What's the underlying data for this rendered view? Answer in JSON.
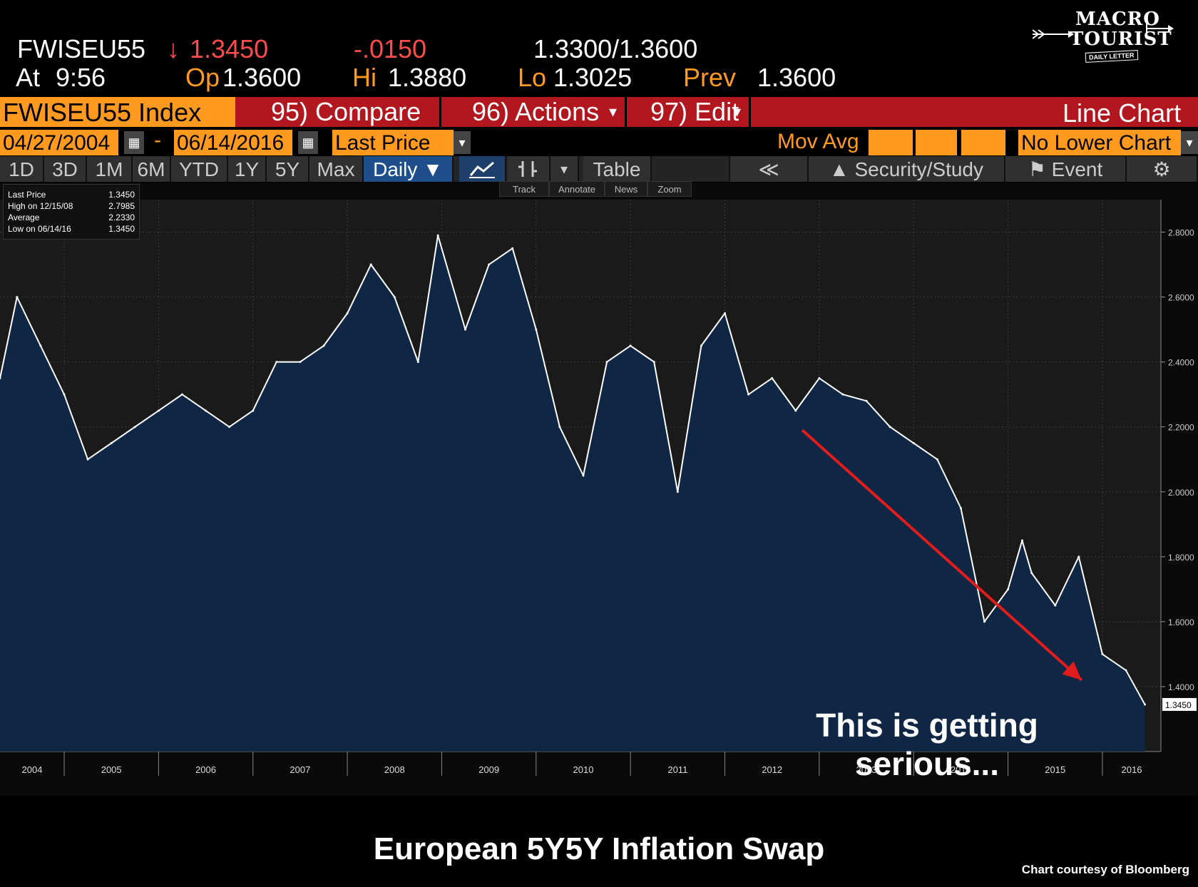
{
  "quote": {
    "ticker": "FWISEU55",
    "arrow": "↓",
    "last": "1.3450",
    "change": "-.0150",
    "bid_ask": "1.3300/1.3600",
    "at_label": "At",
    "at_time": "9:56",
    "op_label": "Op",
    "op_value": "1.3600",
    "hi_label": "Hi",
    "hi_value": "1.3880",
    "lo_label": "Lo",
    "lo_value": "1.3025",
    "prev_label": "Prev",
    "prev_value": "1.3600"
  },
  "logo": {
    "line1": "MACRO",
    "line2": "TOURIST",
    "line3": "DAILY LETTER"
  },
  "toolbar1": {
    "security": "FWISEU55 Index",
    "compare": "95) Compare",
    "actions": "96) Actions",
    "edit": "97) Edit",
    "chart_type": "Line Chart",
    "dropdown_arrow": "▾"
  },
  "toolbar2": {
    "start_date": "04/27/2004",
    "dash": "-",
    "end_date": "06/14/2016",
    "field": "Last Price",
    "mov_avg": "Mov Avg",
    "lower_chart": "No Lower Chart",
    "calendar_glyph": "▦",
    "dropdown_arrow": "▾"
  },
  "toolbar3": {
    "periods": [
      "1D",
      "3D",
      "1M",
      "6M",
      "YTD",
      "1Y",
      "5Y",
      "Max"
    ],
    "frequency": "Daily ▼",
    "table": "Table",
    "back": "≪",
    "security_study": "Security/Study",
    "event": "Event",
    "settings_glyph": "⚙"
  },
  "minitoolbar": {
    "track": "Track",
    "annotate": "Annotate",
    "news": "News",
    "zoom": "Zoom"
  },
  "legend": {
    "last_label": "Last Price",
    "last_value": "1.3450",
    "high_label": "High on 12/15/08",
    "high_value": "2.7985",
    "avg_label": "Average",
    "avg_value": "2.2330",
    "low_label": "Low on 06/14/16",
    "low_value": "1.3450"
  },
  "annotation": {
    "line1": "This is getting",
    "line2": "serious..."
  },
  "footer": {
    "title": "European 5Y5Y Inflation Swap",
    "credit": "Chart courtesy of Bloomberg"
  },
  "colors": {
    "fill": "#0f2744",
    "line": "#ffffff",
    "arrow": "#e01c1c",
    "orange": "#ff9a1f",
    "red_bar": "#b2161e"
  },
  "chart_data": {
    "type": "area",
    "title": "European 5Y5Y Inflation Swap",
    "series": [
      {
        "name": "Last Price",
        "x": [
          2004.32,
          2004.5,
          2004.75,
          2005.0,
          2005.25,
          2005.5,
          2005.75,
          2006.0,
          2006.25,
          2006.5,
          2006.75,
          2007.0,
          2007.25,
          2007.5,
          2007.75,
          2008.0,
          2008.25,
          2008.5,
          2008.75,
          2008.96,
          2009.25,
          2009.5,
          2009.75,
          2010.0,
          2010.25,
          2010.5,
          2010.75,
          2011.0,
          2011.25,
          2011.5,
          2011.75,
          2012.0,
          2012.25,
          2012.5,
          2012.75,
          2013.0,
          2013.25,
          2013.5,
          2013.75,
          2014.0,
          2014.25,
          2014.5,
          2014.75,
          2015.0,
          2015.15,
          2015.25,
          2015.5,
          2015.75,
          2016.0,
          2016.25,
          2016.45
        ],
        "y": [
          2.35,
          2.6,
          2.45,
          2.3,
          2.1,
          2.15,
          2.2,
          2.25,
          2.3,
          2.25,
          2.2,
          2.25,
          2.4,
          2.4,
          2.45,
          2.55,
          2.7,
          2.6,
          2.4,
          2.79,
          2.5,
          2.7,
          2.75,
          2.5,
          2.2,
          2.05,
          2.4,
          2.45,
          2.4,
          2.0,
          2.45,
          2.55,
          2.3,
          2.35,
          2.25,
          2.35,
          2.3,
          2.28,
          2.2,
          2.15,
          2.1,
          1.95,
          1.6,
          1.7,
          1.85,
          1.75,
          1.65,
          1.8,
          1.5,
          1.45,
          1.345
        ]
      }
    ],
    "x_ticks": [
      "2004",
      "2005",
      "2006",
      "2007",
      "2008",
      "2009",
      "2010",
      "2011",
      "2012",
      "2013",
      "2014",
      "2015",
      "2016"
    ],
    "y_ticks": [
      "1.4000",
      "1.6000",
      "1.8000",
      "2.0000",
      "2.2000",
      "2.4000",
      "2.6000",
      "2.8000"
    ],
    "last_label": "1.3450",
    "ylim": [
      1.2,
      2.9
    ],
    "xlim": [
      2004.32,
      2016.62
    ],
    "grid": true,
    "legend_position": "top-left"
  }
}
